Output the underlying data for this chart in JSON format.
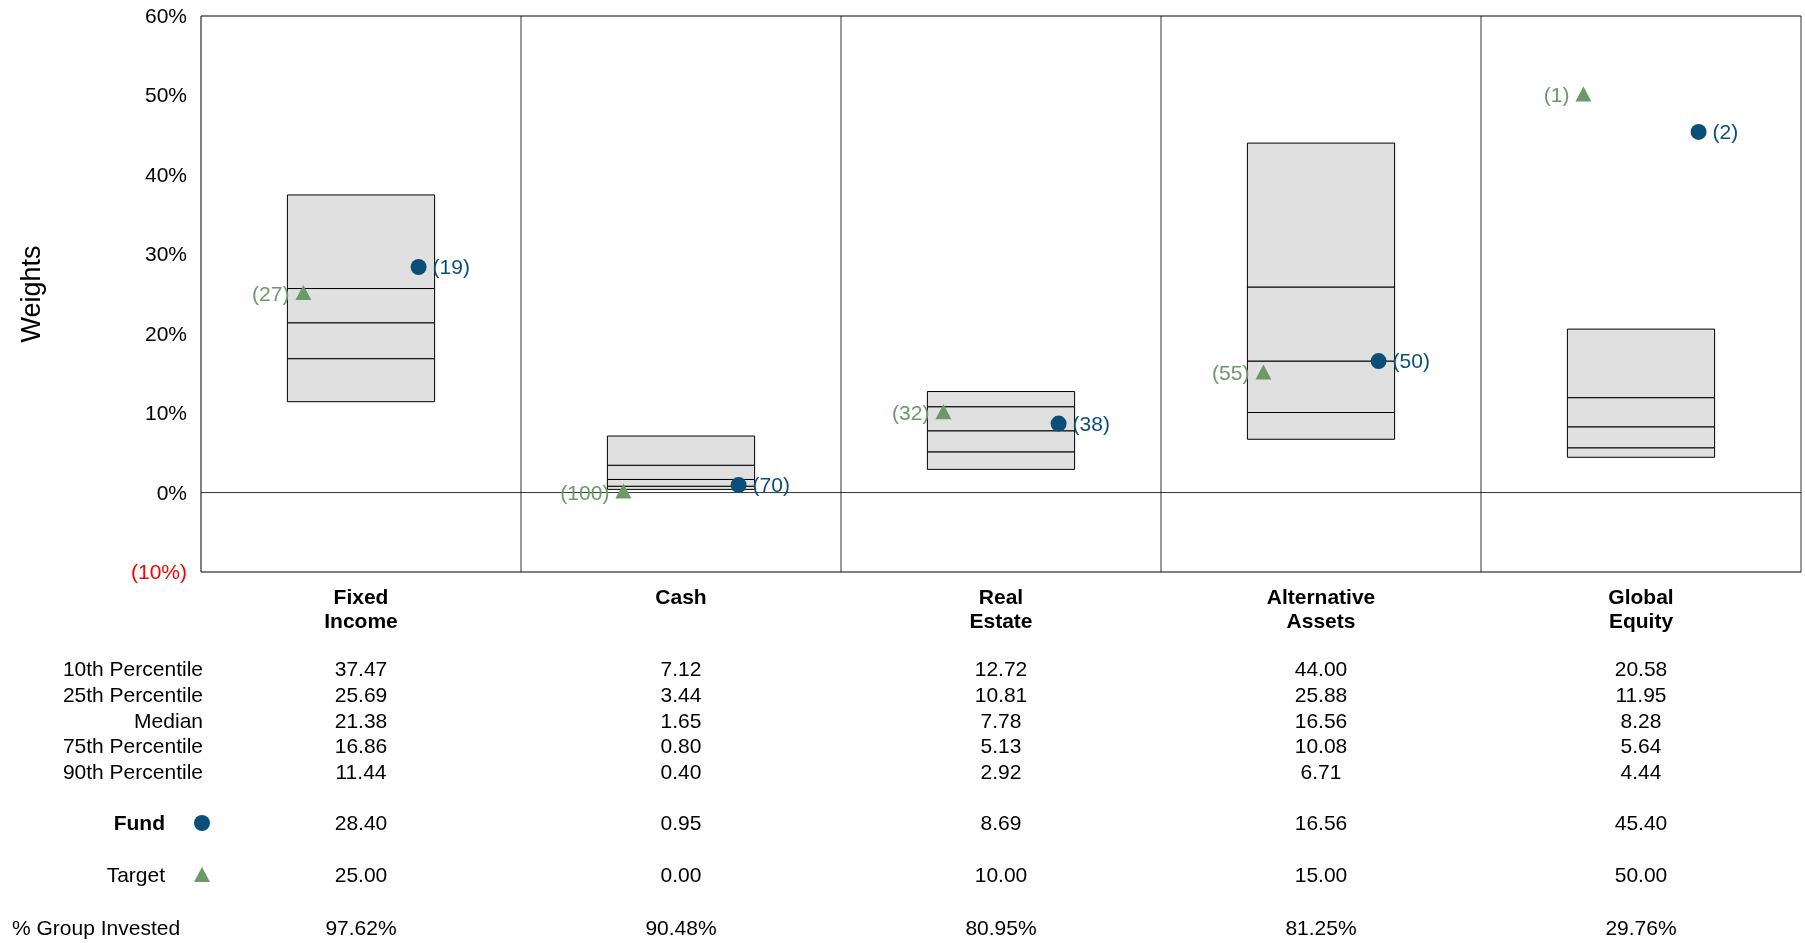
{
  "chart_data": {
    "type": "bar",
    "ylabel": "Weights",
    "categories": [
      "Fixed Income",
      "Cash",
      "Real Estate",
      "Alternative Assets",
      "Global Equity"
    ],
    "series": [
      {
        "color": "#e0e0e0",
        "base": [
          11.44,
          0.4,
          2.92,
          6.71,
          4.44
        ],
        "values": [
          5.42,
          0.4,
          2.21,
          3.37,
          1.2
        ]
      },
      {
        "color": "#e0e0e0",
        "base": [
          16.86,
          0.8,
          5.13,
          10.08,
          5.64
        ],
        "values": [
          4.52,
          0.85,
          2.65,
          6.48,
          2.64
        ]
      },
      {
        "color": "#e0e0e0",
        "base": [
          21.38,
          1.65,
          7.78,
          16.56,
          8.28
        ],
        "values": [
          4.31,
          1.79,
          3.03,
          9.32,
          3.67
        ]
      },
      {
        "color": "#e0e0e0",
        "base": [
          25.69,
          3.44,
          10.81,
          25.88,
          11.95
        ],
        "values": [
          11.78,
          3.68,
          1.91,
          18.12,
          8.63
        ]
      },
      {
        "name": "Fund",
        "type": "scatter",
        "marker": "circle",
        "color": "#0b4f78",
        "x": [
          "Fixed Income",
          "Cash",
          "Real Estate",
          "Alternative Assets",
          "Global Equity"
        ],
        "values": [
          28.4,
          0.95,
          8.69,
          16.56,
          45.4
        ]
      },
      {
        "name": "Target",
        "type": "scatter",
        "marker": "triangle",
        "color": "#6b9a68",
        "x": [
          "Fixed Income",
          "Cash",
          "Real Estate",
          "Alternative Assets",
          "Global Equity"
        ],
        "values": [
          25,
          0,
          10,
          15,
          50
        ]
      }
    ],
    "ylim": [
      -10,
      60
    ],
    "yticks": [
      {
        "value": -10,
        "label": "(10%)"
      },
      {
        "value": 0,
        "label": "0%"
      },
      {
        "value": 10,
        "label": "10%"
      },
      {
        "value": 20,
        "label": "20%"
      },
      {
        "value": 30,
        "label": "30%"
      },
      {
        "value": 40,
        "label": "40%"
      },
      {
        "value": 50,
        "label": "50%"
      },
      {
        "value": 60,
        "label": "60%"
      }
    ],
    "ref_lines": [
      {
        "axis": "y",
        "value": 0,
        "color": "#000000"
      }
    ],
    "grid": "x",
    "legend": "bottom left",
    "annotations": [
      "(19)",
      "(70)",
      "(38)",
      "(50)",
      "(2)",
      "(27)",
      "(100)",
      "(32)",
      "(55)",
      "(1)",
      "10th Percentile",
      "25th Percentile",
      "Median",
      "75th Percentile",
      "90th Percentile",
      "37.47",
      "7.12",
      "12.72",
      "44.00",
      "20.58",
      "25.69",
      "3.44",
      "10.81",
      "25.88",
      "11.95",
      "21.38",
      "1.65",
      "7.78",
      "16.56",
      "8.28",
      "16.86",
      "0.80",
      "5.13",
      "10.08",
      "5.64",
      "11.44",
      "0.40",
      "2.92",
      "6.71",
      "4.44",
      "28.40",
      "0.95",
      "8.69",
      "16.56",
      "45.40",
      "25.00",
      "0.00",
      "10.00",
      "15.00",
      "50.00",
      "% Group Invested",
      "97.62%",
      "90.48%",
      "80.95%",
      "81.25%",
      "29.76%"
    ]
  }
}
